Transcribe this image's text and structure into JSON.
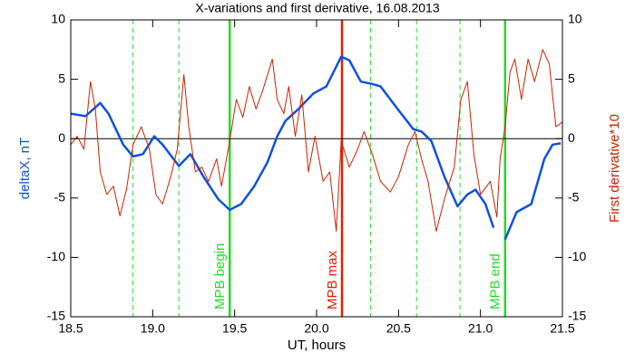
{
  "chart_data": {
    "type": "line",
    "title": "X-variations and first derivative, 16.08.2013",
    "xlabel": "UT, hours",
    "ylabel": "deltaX, nT",
    "y2label": "First derivative*10",
    "xlim": [
      18.5,
      21.5
    ],
    "xticks": [
      18.5,
      {
        "value": 19,
        "label": "19.0"
      },
      19.5,
      {
        "value": 20,
        "label": "20.0"
      },
      20.5,
      {
        "value": 21,
        "label": "21.0"
      },
      21.5
    ],
    "ylim": [
      -15,
      10
    ],
    "yticks": [
      10,
      5,
      0,
      -5,
      -10,
      -15
    ],
    "y2lim": [
      -15,
      10
    ],
    "y2ticks": [
      10,
      5,
      0,
      -5,
      -10,
      -15
    ],
    "zero_line": 0,
    "series": [
      {
        "name": "deltaX, nT",
        "color": "#1050e0",
        "x": [
          18.5,
          18.59,
          18.68,
          18.73,
          18.82,
          18.88,
          18.94,
          19.01,
          19.06,
          19.16,
          19.23,
          19.31,
          19.4,
          19.47,
          19.54,
          19.62,
          19.7,
          19.76,
          19.81,
          19.89,
          19.98,
          20.06,
          20.15,
          20.2,
          20.27,
          20.34,
          20.39,
          20.5,
          20.59,
          20.64,
          20.7,
          20.78,
          20.86,
          20.92,
          20.97,
          21.03,
          21.08,
          21.11,
          21.15,
          21.22,
          21.31,
          21.39,
          21.44,
          21.49
        ],
        "values": [
          2.1,
          1.9,
          3.0,
          2.1,
          -0.5,
          -1.5,
          -1.3,
          0.2,
          -0.5,
          -2.3,
          -1.3,
          -3.2,
          -5.1,
          -6.0,
          -5.5,
          -4,
          -2,
          0.2,
          1.5,
          2.5,
          3.8,
          4.4,
          6.9,
          6.6,
          4.8,
          4.6,
          4.4,
          2.4,
          0.8,
          0.6,
          -0.2,
          -3.2,
          -5.7,
          -4.7,
          -4.3,
          -5.5,
          -7.5,
          null,
          -8.5,
          -6.2,
          -5.5,
          -1.7,
          -0.5,
          -0.4
        ]
      },
      {
        "name": "First derivative*10",
        "color": "#d02000",
        "axis": "y2",
        "x": [
          18.5,
          18.54,
          18.58,
          18.62,
          18.65,
          18.68,
          18.72,
          18.76,
          18.8,
          18.84,
          18.88,
          18.93,
          18.98,
          19.02,
          19.06,
          19.11,
          19.15,
          19.19,
          19.22,
          19.26,
          19.3,
          19.34,
          19.39,
          19.42,
          19.47,
          19.51,
          19.55,
          19.59,
          19.63,
          19.67,
          19.73,
          19.76,
          19.8,
          19.83,
          19.87,
          19.91,
          19.95,
          19.99,
          20.04,
          20.08,
          20.12,
          20.15,
          20.2,
          20.25,
          20.29,
          20.34,
          20.39,
          20.45,
          20.5,
          20.56,
          20.6,
          20.64,
          20.68,
          20.73,
          20.78,
          20.84,
          20.88,
          20.92,
          20.96,
          21.0,
          21.06,
          21.1,
          21.12,
          21.15,
          21.18,
          21.21,
          21.25,
          21.29,
          21.33,
          21.38,
          21.42,
          21.46,
          21.5
        ],
        "values": [
          -0.5,
          0.2,
          -0.9,
          4.8,
          2.5,
          -2.8,
          -4.7,
          -4,
          -6.5,
          -4.3,
          -0.5,
          1,
          -0.9,
          -4.7,
          -5.5,
          -3.2,
          -0.9,
          5.4,
          1,
          -2.8,
          -2.4,
          -3.6,
          -1.7,
          -4,
          -0.2,
          3.3,
          1.8,
          4.4,
          2.5,
          4,
          6.7,
          3.3,
          2.1,
          4.4,
          0.2,
          3.7,
          -2.8,
          0.2,
          -3.6,
          -2.8,
          -7.8,
          -0.2,
          -2.4,
          -0.9,
          0.6,
          -1.3,
          -3.6,
          -4.5,
          -3.2,
          -0.5,
          0.6,
          -1.7,
          -3.6,
          -7.8,
          -5.1,
          -2.4,
          3.3,
          4.8,
          -1.3,
          -4.7,
          -3.6,
          -6.6,
          -1.7,
          1,
          5.6,
          6.7,
          3.3,
          6.7,
          4.8,
          7.5,
          6.3,
          1,
          1.4
        ]
      }
    ],
    "markers": [
      {
        "x": 18.88,
        "color": "#22dd22",
        "dashed": true
      },
      {
        "x": 19.16,
        "color": "#22dd22",
        "dashed": true
      },
      {
        "x": 19.47,
        "color": "#22dd22",
        "dashed": false,
        "label": "MPB begin"
      },
      {
        "x": 20.155,
        "color": "#e02000",
        "dashed": false,
        "label": "MPB max"
      },
      {
        "x": 20.33,
        "color": "#22dd22",
        "dashed": true
      },
      {
        "x": 20.61,
        "color": "#22dd22",
        "dashed": true
      },
      {
        "x": 20.875,
        "color": "#22dd22",
        "dashed": true
      },
      {
        "x": 21.15,
        "color": "#22dd22",
        "dashed": false,
        "label": "MPB end"
      }
    ]
  }
}
